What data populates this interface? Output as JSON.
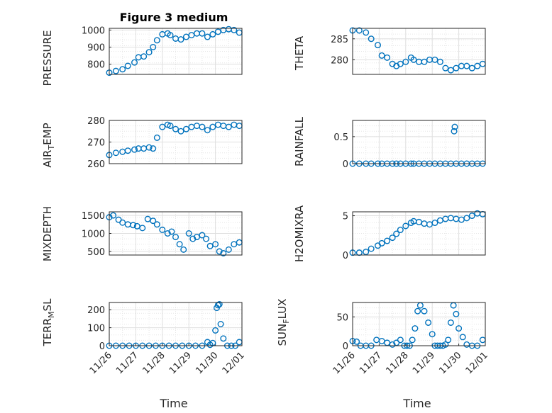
{
  "figure": {
    "title": "Figure 3 medium",
    "marker_color": "#0072bd",
    "axes_color": "#262626",
    "grid_color": "#dfdfdf"
  },
  "time_ticks": [
    "11/26",
    "11/27",
    "11/28",
    "11/29",
    "11/30",
    "12/01"
  ],
  "chart_data": [
    {
      "type": "scatter",
      "title": "Figure 3 medium",
      "ylabel": "PRESSURE",
      "xlim": [
        "11/26",
        "12/01"
      ],
      "ylim": [
        740,
        1010
      ],
      "yticks": [
        800,
        900,
        1000
      ],
      "grid": true,
      "x_days": [
        0.0,
        0.5,
        1.0,
        1.4,
        1.9,
        2.2,
        2.6,
        3.0,
        3.3,
        3.6,
        4.0,
        4.4,
        4.6,
        5.0,
        5.4,
        5.8,
        6.2,
        6.6,
        7.0,
        7.4,
        7.8,
        8.2,
        8.6,
        9.0,
        9.4,
        9.8
      ],
      "y": [
        750,
        760,
        770,
        790,
        810,
        840,
        845,
        870,
        900,
        940,
        975,
        980,
        970,
        950,
        945,
        960,
        970,
        980,
        980,
        960,
        975,
        990,
        1000,
        1005,
        1000,
        985
      ]
    },
    {
      "type": "scatter",
      "ylabel": "THETA",
      "xlim": [
        "11/26",
        "12/01"
      ],
      "ylim": [
        276.5,
        287.5
      ],
      "yticks": [
        280,
        285
      ],
      "grid": true,
      "x_days": [
        0.0,
        0.5,
        1.0,
        1.4,
        1.9,
        2.2,
        2.6,
        3.0,
        3.3,
        3.6,
        4.0,
        4.4,
        4.6,
        5.0,
        5.4,
        5.8,
        6.2,
        6.6,
        7.0,
        7.4,
        7.8,
        8.2,
        8.6,
        9.0,
        9.4,
        9.8
      ],
      "y": [
        287,
        287,
        286.5,
        285.0,
        283.5,
        281.0,
        280.5,
        279.0,
        278.5,
        279.0,
        279.5,
        280.5,
        280.0,
        279.5,
        279.5,
        280.0,
        280.0,
        279.5,
        278.0,
        277.5,
        278.0,
        278.5,
        278.5,
        278.0,
        278.5,
        279.0
      ]
    },
    {
      "type": "scatter",
      "ylabel": "AIR_TEMP",
      "xlim": [
        "11/26",
        "12/01"
      ],
      "ylim": [
        260,
        280
      ],
      "yticks": [
        260,
        270,
        280
      ],
      "grid": true,
      "x_days": [
        0.0,
        0.5,
        1.0,
        1.4,
        1.9,
        2.2,
        2.6,
        3.0,
        3.3,
        3.6,
        4.0,
        4.4,
        4.6,
        5.0,
        5.4,
        5.8,
        6.2,
        6.6,
        7.0,
        7.4,
        7.8,
        8.2,
        8.6,
        9.0,
        9.4,
        9.8
      ],
      "y": [
        264,
        265,
        265.5,
        266,
        266.5,
        267,
        267,
        267.5,
        267,
        272,
        277,
        278,
        277.5,
        276,
        275,
        276,
        277,
        277.5,
        277,
        275.5,
        277,
        278,
        277.5,
        277,
        278,
        277.5
      ]
    },
    {
      "type": "scatter",
      "ylabel": "RAINFALL",
      "xlim": [
        "11/26",
        "12/01"
      ],
      "ylim": [
        0,
        0.8
      ],
      "yticks": [
        0,
        0.5
      ],
      "grid": true,
      "x_days": [
        0.0,
        0.5,
        1.0,
        1.4,
        1.9,
        2.2,
        2.6,
        3.0,
        3.3,
        3.6,
        4.0,
        4.4,
        4.6,
        5.0,
        5.4,
        5.8,
        6.2,
        6.6,
        7.0,
        7.4,
        7.8,
        8.2,
        8.6,
        9.0,
        9.4,
        9.8,
        7.65,
        7.7
      ],
      "y": [
        0,
        0,
        0,
        0,
        0,
        0,
        0,
        0,
        0,
        0,
        0,
        0,
        0,
        0,
        0,
        0,
        0,
        0,
        0,
        0,
        0,
        0,
        0,
        0,
        0,
        0,
        0.6,
        0.68
      ]
    },
    {
      "type": "scatter",
      "ylabel": "MIXDEPTH",
      "xlim": [
        "11/26",
        "12/01"
      ],
      "ylim": [
        400,
        1600
      ],
      "yticks": [
        500,
        1000,
        1500
      ],
      "grid": true,
      "x_days": [
        0.0,
        0.3,
        0.7,
        1.0,
        1.4,
        1.8,
        2.1,
        2.5,
        2.9,
        3.3,
        3.6,
        4.0,
        4.4,
        4.7,
        5.0,
        5.3,
        5.6,
        6.0,
        6.3,
        6.6,
        7.0,
        7.3,
        7.6,
        8.0,
        8.3,
        8.6,
        9.0,
        9.4,
        9.8
      ],
      "y": [
        1450,
        1500,
        1380,
        1300,
        1250,
        1230,
        1200,
        1150,
        1400,
        1350,
        1250,
        1100,
        1000,
        1050,
        900,
        700,
        550,
        1000,
        850,
        900,
        950,
        850,
        650,
        700,
        500,
        450,
        550,
        700,
        750
      ]
    },
    {
      "type": "scatter",
      "ylabel": "H2OMIXRA",
      "xlim": [
        "11/26",
        "12/01"
      ],
      "ylim": [
        0,
        5.5
      ],
      "yticks": [
        0,
        5
      ],
      "grid": true,
      "x_days": [
        0.0,
        0.5,
        1.0,
        1.4,
        1.9,
        2.2,
        2.6,
        3.0,
        3.3,
        3.6,
        4.0,
        4.4,
        4.6,
        5.0,
        5.4,
        5.8,
        6.2,
        6.6,
        7.0,
        7.4,
        7.8,
        8.2,
        8.6,
        9.0,
        9.4,
        9.8
      ],
      "y": [
        0.3,
        0.3,
        0.4,
        0.8,
        1.2,
        1.5,
        1.8,
        2.2,
        2.7,
        3.2,
        3.7,
        4.1,
        4.3,
        4.2,
        4.0,
        3.9,
        4.1,
        4.4,
        4.6,
        4.7,
        4.6,
        4.5,
        4.7,
        5.0,
        5.3,
        5.2
      ]
    },
    {
      "type": "scatter",
      "ylabel": "TERR_MSL",
      "xlim": [
        "11/26",
        "12/01"
      ],
      "ylim": [
        0,
        240
      ],
      "yticks": [
        0,
        100,
        200
      ],
      "grid": true,
      "x_days": [
        0.0,
        0.5,
        1.0,
        1.5,
        2.0,
        2.5,
        3.0,
        3.5,
        4.0,
        4.5,
        5.0,
        5.5,
        6.0,
        6.5,
        7.0,
        7.4,
        7.6,
        7.8,
        8.0,
        8.1,
        8.2,
        8.3,
        8.4,
        8.6,
        8.9,
        9.2,
        9.5,
        9.8
      ],
      "y": [
        0,
        0,
        0,
        0,
        0,
        0,
        0,
        0,
        0,
        0,
        0,
        0,
        0,
        0,
        0,
        20,
        5,
        15,
        85,
        210,
        225,
        230,
        120,
        40,
        0,
        0,
        0,
        20
      ]
    },
    {
      "type": "scatter",
      "ylabel": "SUN_FLUX",
      "xlim": [
        "11/26",
        "12/01"
      ],
      "ylim": [
        0,
        75
      ],
      "yticks": [
        0,
        50
      ],
      "grid": true,
      "x_days": [
        0.0,
        0.3,
        0.6,
        1.0,
        1.4,
        1.8,
        2.2,
        2.6,
        3.0,
        3.3,
        3.6,
        3.9,
        4.1,
        4.3,
        4.5,
        4.7,
        4.9,
        5.1,
        5.4,
        5.7,
        6.0,
        6.2,
        6.4,
        6.6,
        6.8,
        7.0,
        7.2,
        7.4,
        7.6,
        7.8,
        8.0,
        8.3,
        8.6,
        9.0,
        9.4,
        9.8
      ],
      "y": [
        8,
        7,
        0,
        0,
        0,
        10,
        8,
        5,
        2,
        5,
        10,
        0,
        0,
        0,
        10,
        30,
        60,
        70,
        60,
        40,
        20,
        0,
        0,
        0,
        0,
        2,
        10,
        40,
        70,
        55,
        30,
        15,
        2,
        0,
        0,
        10
      ]
    }
  ]
}
